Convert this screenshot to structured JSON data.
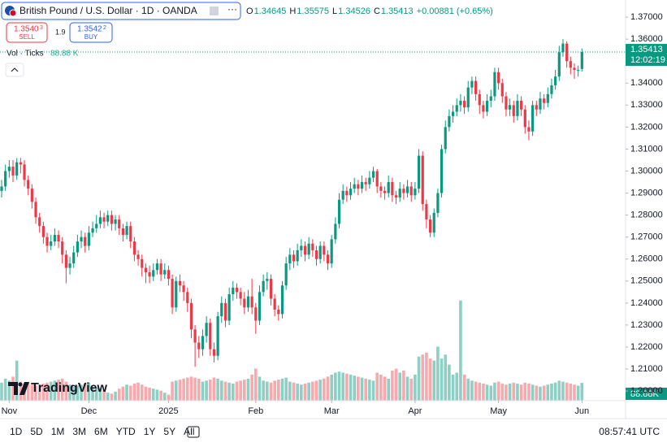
{
  "chart_data": {
    "type": "candlestick",
    "symbol": "British Pound / U.S. Dollar · 1D · OANDA",
    "legend": [
      {
        "label": "O",
        "value": "1.34645"
      },
      {
        "label": "H",
        "value": "1.35575"
      },
      {
        "label": "L",
        "value": "1.34526"
      },
      {
        "label": "C",
        "value": "1.35413"
      }
    ],
    "change": "+0.00881 (+0.65%)",
    "sell": {
      "price": "1.3540",
      "sup": "3",
      "label": "SELL"
    },
    "spread": "1.9",
    "buy": {
      "price": "1.3542",
      "sup": "2",
      "label": "BUY"
    },
    "volume_legend": {
      "label": "Vol · Ticks",
      "value": "88.88 K"
    },
    "last_price": 1.35413,
    "countdown": "12:02:19",
    "last_volume_label": "88.88K",
    "logo": "TradingView",
    "ranges": [
      "1D",
      "5D",
      "1M",
      "3M",
      "6M",
      "YTD",
      "1Y",
      "5Y",
      "All"
    ],
    "clock": "08:57:41 UTC",
    "up_color": "#089981",
    "down_color": "#f23645",
    "volume_up_color": "#8ccfc4",
    "volume_down_color": "#f7a9ad",
    "grid": false,
    "xlim": [
      -0.43,
      164.5
    ],
    "xticks": [
      {
        "value": 2,
        "label": "Nov"
      },
      {
        "value": 23,
        "label": "Dec"
      },
      {
        "value": 44,
        "label": "2025"
      },
      {
        "value": 67,
        "label": "Feb"
      },
      {
        "value": 87,
        "label": "Mar"
      },
      {
        "value": 109,
        "label": "Apr"
      },
      {
        "value": 131,
        "label": "May"
      },
      {
        "value": 153,
        "label": "Jun"
      }
    ],
    "ylim": [
      1.1956,
      1.3778
    ],
    "yticks": [
      {
        "value": 1.37,
        "label": "1.37000"
      },
      {
        "value": 1.36,
        "label": "1.36000"
      },
      {
        "value": 1.34,
        "label": "1.34000"
      },
      {
        "value": 1.33,
        "label": "1.33000"
      },
      {
        "value": 1.32,
        "label": "1.32000"
      },
      {
        "value": 1.31,
        "label": "1.31000"
      },
      {
        "value": 1.3,
        "label": "1.30000"
      },
      {
        "value": 1.29,
        "label": "1.29000"
      },
      {
        "value": 1.28,
        "label": "1.28000"
      },
      {
        "value": 1.27,
        "label": "1.27000"
      },
      {
        "value": 1.26,
        "label": "1.26000"
      },
      {
        "value": 1.25,
        "label": "1.25000"
      },
      {
        "value": 1.24,
        "label": "1.24000"
      },
      {
        "value": 1.23,
        "label": "1.23000"
      },
      {
        "value": 1.22,
        "label": "1.22000"
      },
      {
        "value": 1.21,
        "label": "1.21000"
      },
      {
        "value": 1.2,
        "label": "1.20000"
      }
    ],
    "y2lim": [
      0,
      2000
    ],
    "open": [
      1.291,
      1.293,
      1.3,
      1.302,
      1.298,
      1.304,
      1.303,
      1.296,
      1.292,
      1.286,
      1.279,
      1.275,
      1.27,
      1.266,
      1.268,
      1.271,
      1.268,
      1.262,
      1.256,
      1.258,
      1.263,
      1.268,
      1.27,
      1.266,
      1.272,
      1.274,
      1.276,
      1.279,
      1.277,
      1.28,
      1.276,
      1.278,
      1.274,
      1.271,
      1.275,
      1.268,
      1.262,
      1.26,
      1.256,
      1.254,
      1.252,
      1.255,
      1.258,
      1.253,
      1.255,
      1.251,
      1.238,
      1.25,
      1.248,
      1.245,
      1.24,
      1.228,
      1.222,
      1.219,
      1.225,
      1.231,
      1.219,
      1.216,
      1.234,
      1.24,
      1.232,
      1.244,
      1.247,
      1.245,
      1.242,
      1.238,
      1.243,
      1.238,
      1.232,
      1.245,
      1.25,
      1.251,
      1.242,
      1.237,
      1.235,
      1.248,
      1.258,
      1.262,
      1.259,
      1.264,
      1.266,
      1.262,
      1.267,
      1.264,
      1.26,
      1.266,
      1.262,
      1.258,
      1.269,
      1.276,
      1.287,
      1.291,
      1.289,
      1.292,
      1.294,
      1.292,
      1.295,
      1.294,
      1.297,
      1.3,
      1.293,
      1.291,
      1.29,
      1.295,
      1.289,
      1.288,
      1.292,
      1.29,
      1.293,
      1.289,
      1.292,
      1.307,
      1.285,
      1.278,
      1.272,
      1.281,
      1.29,
      1.31,
      1.32,
      1.325,
      1.327,
      1.33,
      1.332,
      1.329,
      1.338,
      1.341,
      1.335,
      1.33,
      1.327,
      1.332,
      1.334,
      1.345,
      1.34,
      1.334,
      1.328,
      1.33,
      1.325,
      1.332,
      1.328,
      1.32,
      1.318,
      1.33,
      1.328,
      1.333,
      1.331,
      1.335,
      1.339,
      1.343,
      1.354,
      1.358,
      1.35,
      1.347,
      1.346,
      1.34645
    ],
    "high": [
      1.296,
      1.303,
      1.305,
      1.305,
      1.306,
      1.306,
      1.305,
      1.298,
      1.294,
      1.288,
      1.281,
      1.277,
      1.272,
      1.271,
      1.274,
      1.273,
      1.27,
      1.264,
      1.261,
      1.266,
      1.271,
      1.273,
      1.272,
      1.275,
      1.277,
      1.28,
      1.282,
      1.281,
      1.282,
      1.282,
      1.28,
      1.28,
      1.276,
      1.277,
      1.277,
      1.27,
      1.264,
      1.262,
      1.258,
      1.257,
      1.258,
      1.26,
      1.26,
      1.258,
      1.257,
      1.253,
      1.252,
      1.253,
      1.25,
      1.247,
      1.242,
      1.23,
      1.225,
      1.228,
      1.234,
      1.233,
      1.222,
      1.236,
      1.243,
      1.242,
      1.247,
      1.25,
      1.249,
      1.247,
      1.245,
      1.246,
      1.251,
      1.24,
      1.248,
      1.253,
      1.254,
      1.253,
      1.244,
      1.239,
      1.25,
      1.261,
      1.265,
      1.264,
      1.267,
      1.269,
      1.268,
      1.27,
      1.269,
      1.266,
      1.268,
      1.268,
      1.264,
      1.271,
      1.279,
      1.29,
      1.294,
      1.293,
      1.295,
      1.297,
      1.296,
      1.298,
      1.297,
      1.3,
      1.302,
      1.301,
      1.295,
      1.293,
      1.298,
      1.297,
      1.291,
      1.295,
      1.294,
      1.296,
      1.295,
      1.295,
      1.31,
      1.309,
      1.287,
      1.28,
      1.283,
      1.292,
      1.312,
      1.323,
      1.328,
      1.33,
      1.333,
      1.335,
      1.334,
      1.341,
      1.343,
      1.343,
      1.337,
      1.332,
      1.335,
      1.337,
      1.347,
      1.347,
      1.342,
      1.336,
      1.333,
      1.332,
      1.335,
      1.334,
      1.33,
      1.323,
      1.332,
      1.332,
      1.336,
      1.335,
      1.338,
      1.342,
      1.346,
      1.357,
      1.36,
      1.359,
      1.352,
      1.349,
      1.348,
      1.35575
    ],
    "low": [
      1.288,
      1.291,
      1.297,
      1.295,
      1.296,
      1.299,
      1.293,
      1.289,
      1.283,
      1.276,
      1.272,
      1.267,
      1.263,
      1.264,
      1.266,
      1.265,
      1.258,
      1.249,
      1.253,
      1.256,
      1.261,
      1.265,
      1.263,
      1.264,
      1.27,
      1.272,
      1.274,
      1.274,
      1.275,
      1.273,
      1.273,
      1.271,
      1.268,
      1.269,
      1.265,
      1.259,
      1.257,
      1.252,
      1.249,
      1.249,
      1.25,
      1.253,
      1.25,
      1.251,
      1.248,
      1.235,
      1.236,
      1.245,
      1.241,
      1.236,
      1.224,
      1.211,
      1.215,
      1.216,
      1.222,
      1.216,
      1.213,
      1.214,
      1.231,
      1.229,
      1.23,
      1.241,
      1.242,
      1.239,
      1.235,
      1.236,
      1.235,
      1.226,
      1.23,
      1.243,
      1.246,
      1.239,
      1.234,
      1.232,
      1.233,
      1.246,
      1.255,
      1.256,
      1.257,
      1.261,
      1.259,
      1.26,
      1.261,
      1.257,
      1.258,
      1.259,
      1.255,
      1.256,
      1.267,
      1.274,
      1.285,
      1.286,
      1.287,
      1.29,
      1.289,
      1.29,
      1.291,
      1.292,
      1.295,
      1.29,
      1.288,
      1.287,
      1.288,
      1.286,
      1.285,
      1.286,
      1.287,
      1.288,
      1.286,
      1.287,
      1.29,
      1.282,
      1.274,
      1.27,
      1.27,
      1.279,
      1.288,
      1.308,
      1.318,
      1.322,
      1.325,
      1.327,
      1.326,
      1.327,
      1.335,
      1.332,
      1.326,
      1.324,
      1.325,
      1.329,
      1.332,
      1.337,
      1.331,
      1.325,
      1.325,
      1.322,
      1.323,
      1.325,
      1.317,
      1.314,
      1.316,
      1.325,
      1.326,
      1.328,
      1.329,
      1.333,
      1.337,
      1.341,
      1.352,
      1.347,
      1.344,
      1.342,
      1.343,
      1.34526
    ],
    "close": [
      1.293,
      1.3,
      1.302,
      1.298,
      1.304,
      1.303,
      1.296,
      1.292,
      1.286,
      1.279,
      1.275,
      1.27,
      1.266,
      1.268,
      1.271,
      1.268,
      1.262,
      1.256,
      1.258,
      1.263,
      1.268,
      1.27,
      1.266,
      1.272,
      1.274,
      1.276,
      1.279,
      1.277,
      1.28,
      1.276,
      1.278,
      1.274,
      1.271,
      1.275,
      1.268,
      1.262,
      1.26,
      1.256,
      1.254,
      1.252,
      1.255,
      1.258,
      1.253,
      1.255,
      1.251,
      1.238,
      1.25,
      1.248,
      1.245,
      1.24,
      1.228,
      1.222,
      1.219,
      1.225,
      1.231,
      1.219,
      1.216,
      1.234,
      1.24,
      1.232,
      1.244,
      1.247,
      1.245,
      1.242,
      1.238,
      1.243,
      1.238,
      1.232,
      1.245,
      1.25,
      1.251,
      1.242,
      1.237,
      1.235,
      1.248,
      1.258,
      1.262,
      1.259,
      1.264,
      1.266,
      1.262,
      1.267,
      1.264,
      1.26,
      1.266,
      1.262,
      1.258,
      1.269,
      1.276,
      1.287,
      1.291,
      1.289,
      1.292,
      1.294,
      1.292,
      1.295,
      1.294,
      1.297,
      1.3,
      1.293,
      1.291,
      1.29,
      1.295,
      1.289,
      1.288,
      1.292,
      1.29,
      1.293,
      1.289,
      1.292,
      1.307,
      1.285,
      1.278,
      1.272,
      1.281,
      1.29,
      1.31,
      1.32,
      1.325,
      1.327,
      1.33,
      1.332,
      1.329,
      1.338,
      1.341,
      1.335,
      1.33,
      1.327,
      1.332,
      1.334,
      1.345,
      1.34,
      1.334,
      1.328,
      1.33,
      1.325,
      1.332,
      1.328,
      1.32,
      1.318,
      1.33,
      1.328,
      1.333,
      1.331,
      1.335,
      1.339,
      1.343,
      1.354,
      1.358,
      1.35,
      1.347,
      1.346,
      1.346,
      1.35413
    ],
    "volume": [
      90,
      110,
      100,
      120,
      200,
      95,
      85,
      90,
      80,
      75,
      80,
      85,
      90,
      95,
      100,
      105,
      110,
      95,
      80,
      70,
      75,
      80,
      85,
      90,
      70,
      65,
      60,
      55,
      40,
      35,
      45,
      60,
      70,
      80,
      75,
      85,
      90,
      80,
      70,
      65,
      60,
      55,
      50,
      40,
      30,
      95,
      100,
      105,
      110,
      115,
      120,
      115,
      110,
      95,
      100,
      105,
      115,
      110,
      100,
      95,
      90,
      85,
      95,
      100,
      105,
      110,
      130,
      160,
      120,
      100,
      95,
      90,
      100,
      105,
      110,
      115,
      95,
      90,
      85,
      80,
      85,
      90,
      95,
      100,
      105,
      110,
      120,
      130,
      140,
      145,
      140,
      135,
      130,
      125,
      120,
      115,
      110,
      105,
      100,
      140,
      130,
      120,
      110,
      150,
      160,
      140,
      150,
      120,
      110,
      130,
      220,
      230,
      240,
      210,
      200,
      270,
      210,
      230,
      180,
      130,
      140,
      500,
      130,
      110,
      100,
      95,
      90,
      85,
      80,
      75,
      90,
      95,
      85,
      80,
      85,
      90,
      85,
      80,
      90,
      85,
      80,
      75,
      70,
      75,
      80,
      85,
      90,
      100,
      95,
      90,
      85,
      80,
      75,
      88.88
    ]
  }
}
